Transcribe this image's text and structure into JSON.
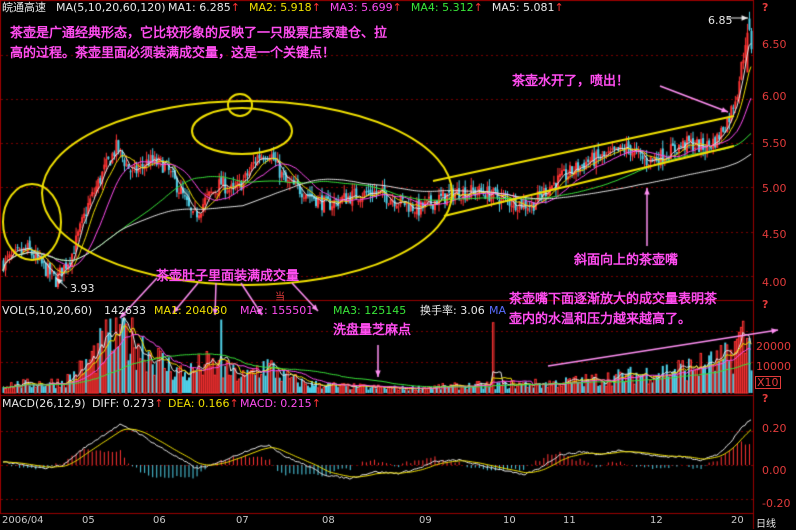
{
  "stock": {
    "name": "皖通高速"
  },
  "price_panel": {
    "indicator_label": "MA(5,10,20,60,120)",
    "ma": [
      {
        "label": "MA1:",
        "value": "6.285",
        "color": "#e8e8e8"
      },
      {
        "label": "MA2:",
        "value": "5.918",
        "color": "#f0e000"
      },
      {
        "label": "MA3:",
        "value": "5.699",
        "color": "#ff4df0"
      },
      {
        "label": "MA4:",
        "value": "5.312",
        "color": "#39e639"
      },
      {
        "label": "MA5:",
        "value": "5.081",
        "color": "#e8e8e8"
      }
    ],
    "high_label": "6.85",
    "low_label": "3.93",
    "y_ticks": [
      "6.50",
      "6.00",
      "5.50",
      "5.00",
      "4.50",
      "4.00"
    ],
    "marker": "?"
  },
  "volume_panel": {
    "indicator_label": "VOL(5,10,20,60)",
    "vol_value": "142633",
    "ma1": {
      "label": "MA1:",
      "value": "204030"
    },
    "ma2": {
      "label": "MA2:",
      "value": "155501"
    },
    "ma3": {
      "label": "MA3:",
      "value": "125145"
    },
    "turnover": {
      "label": "换手率:",
      "value": "3.06"
    },
    "ma4_prefix": "MA",
    "y_ticks": [
      "20000",
      "10000"
    ],
    "unit": "X10",
    "marker": "?"
  },
  "macd_panel": {
    "indicator_label": "MACD(26,12,9)",
    "diff": {
      "label": "DIFF:",
      "value": "0.273"
    },
    "dea": {
      "label": "DEA:",
      "value": "0.166"
    },
    "macd": {
      "label": "MACD:",
      "value": "0.215"
    },
    "y_ticks": [
      "0.20",
      "0.00",
      "-0.20"
    ],
    "marker": "?"
  },
  "x_axis": {
    "labels": [
      "2006/04",
      "05",
      "06",
      "07",
      "08",
      "09",
      "10",
      "11",
      "12",
      "20"
    ],
    "corner": "日线"
  },
  "annotations": {
    "intro_line1": "茶壶是广通经典形态，它比较形象的反映了一只股票庄家建仓、拉",
    "intro_line2": "高的过程。茶壶里面必须装满成交量，这是一个关键点！",
    "water_boiled": "茶壶水开了，喷出！",
    "spout": "斜面向上的茶壶嘴",
    "belly": "茶壶肚子里面装满成交量",
    "washout": "洗盘量芝麻点",
    "spout_volume_line1": "茶壶嘴下面逐渐放大的成交量表明茶",
    "spout_volume_line2": "壶内的水温和压力越来越高了。",
    "small_mark": "当"
  },
  "colors": {
    "up": "#ff3333",
    "down": "#4fd0e8",
    "annotation": "#ff4df0",
    "ellipse": "#f0e000",
    "grid": "#8a0000"
  },
  "chart_data": {
    "type": "candlestick",
    "title": "",
    "price": {
      "ylim": [
        3.75,
        6.95
      ],
      "low": 3.93,
      "high": 6.85,
      "path_points": [
        [
          0,
          4.15
        ],
        [
          12,
          4.3
        ],
        [
          20,
          4.1
        ],
        [
          26,
          3.95
        ],
        [
          34,
          4.25
        ],
        [
          42,
          4.8
        ],
        [
          50,
          5.2
        ],
        [
          56,
          5.45
        ],
        [
          64,
          5.15
        ],
        [
          72,
          5.3
        ],
        [
          80,
          5.25
        ],
        [
          88,
          4.95
        ],
        [
          94,
          4.65
        ],
        [
          100,
          4.85
        ],
        [
          108,
          5.05
        ],
        [
          114,
          4.95
        ],
        [
          120,
          5.1
        ],
        [
          126,
          5.35
        ],
        [
          132,
          5.4
        ],
        [
          140,
          5.05
        ],
        [
          150,
          4.95
        ],
        [
          160,
          4.8
        ],
        [
          172,
          4.9
        ],
        [
          184,
          4.95
        ],
        [
          196,
          4.85
        ],
        [
          206,
          4.75
        ],
        [
          214,
          4.85
        ],
        [
          226,
          4.95
        ],
        [
          238,
          4.95
        ],
        [
          250,
          4.85
        ],
        [
          262,
          4.8
        ],
        [
          270,
          5.0
        ],
        [
          280,
          5.15
        ],
        [
          290,
          5.3
        ],
        [
          300,
          5.35
        ],
        [
          310,
          5.45
        ],
        [
          318,
          5.3
        ],
        [
          326,
          5.35
        ],
        [
          334,
          5.45
        ],
        [
          340,
          5.5
        ],
        [
          348,
          5.45
        ],
        [
          354,
          5.55
        ],
        [
          360,
          5.8
        ],
        [
          364,
          6.1
        ],
        [
          367,
          6.5
        ],
        [
          369,
          6.85
        ],
        [
          371,
          6.6
        ]
      ]
    },
    "volume": {
      "ylim": [
        0,
        24000
      ],
      "profile": [
        [
          0,
          2500
        ],
        [
          30,
          3500
        ],
        [
          40,
          8000
        ],
        [
          50,
          15000
        ],
        [
          60,
          20000
        ],
        [
          70,
          14000
        ],
        [
          80,
          9000
        ],
        [
          90,
          6000
        ],
        [
          100,
          9000
        ],
        [
          110,
          7000
        ],
        [
          120,
          5000
        ],
        [
          130,
          9000
        ],
        [
          140,
          5000
        ],
        [
          150,
          3000
        ],
        [
          170,
          2000
        ],
        [
          200,
          1500
        ],
        [
          220,
          2000
        ],
        [
          240,
          2500
        ],
        [
          270,
          3000
        ],
        [
          290,
          4000
        ],
        [
          310,
          5500
        ],
        [
          330,
          7000
        ],
        [
          350,
          9000
        ],
        [
          360,
          11000
        ],
        [
          366,
          18000
        ],
        [
          370,
          15000
        ]
      ]
    },
    "macd": {
      "ylim": [
        -0.28,
        0.34
      ],
      "diff_profile": [
        [
          0,
          0.02
        ],
        [
          20,
          -0.02
        ],
        [
          30,
          0.0
        ],
        [
          40,
          0.1
        ],
        [
          50,
          0.18
        ],
        [
          58,
          0.24
        ],
        [
          66,
          0.2
        ],
        [
          76,
          0.12
        ],
        [
          86,
          0.05
        ],
        [
          96,
          -0.02
        ],
        [
          104,
          0.0
        ],
        [
          114,
          0.05
        ],
        [
          124,
          0.1
        ],
        [
          132,
          0.12
        ],
        [
          140,
          0.05
        ],
        [
          150,
          0.0
        ],
        [
          160,
          -0.06
        ],
        [
          172,
          -0.08
        ],
        [
          184,
          -0.04
        ],
        [
          196,
          -0.05
        ],
        [
          206,
          -0.02
        ],
        [
          214,
          0.02
        ],
        [
          226,
          0.03
        ],
        [
          236,
          0.0
        ],
        [
          248,
          -0.03
        ],
        [
          258,
          -0.06
        ],
        [
          266,
          -0.02
        ],
        [
          276,
          0.06
        ],
        [
          288,
          0.08
        ],
        [
          296,
          0.06
        ],
        [
          306,
          0.09
        ],
        [
          316,
          0.07
        ],
        [
          326,
          0.05
        ],
        [
          336,
          0.05
        ],
        [
          346,
          0.03
        ],
        [
          354,
          0.06
        ],
        [
          360,
          0.12
        ],
        [
          366,
          0.22
        ],
        [
          371,
          0.27
        ]
      ]
    }
  }
}
